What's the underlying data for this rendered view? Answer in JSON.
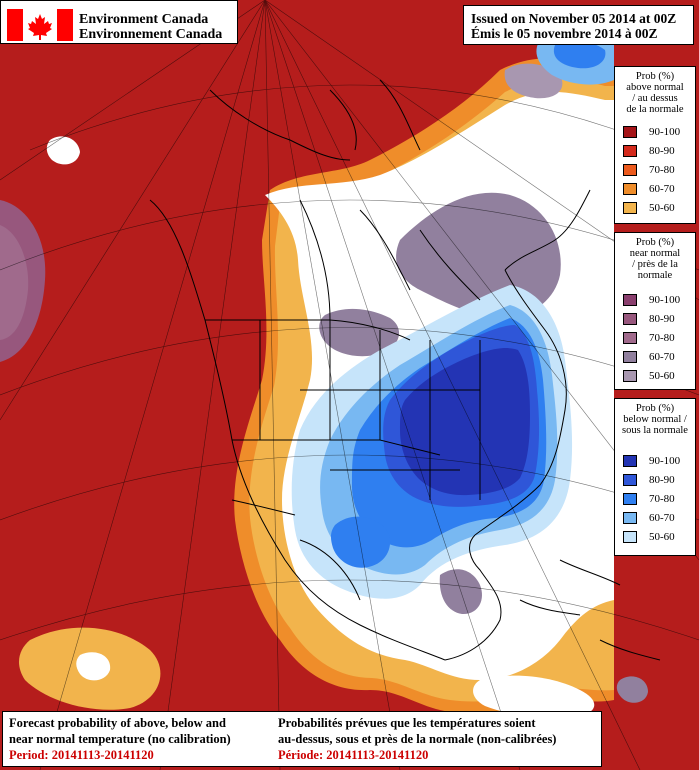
{
  "header": {
    "agency_en": "Environment Canada",
    "agency_fr": "Environnement Canada",
    "flag_colors": {
      "red": "#ff0000",
      "white": "#ffffff"
    }
  },
  "issued": {
    "en": "Issued on November 05 2014 at 00Z",
    "fr": "Émis le 05 novembre 2014 à 00Z"
  },
  "legends": {
    "above": {
      "title": [
        "Prob (%)",
        "above normal",
        "/ au dessus",
        "de la normale"
      ],
      "items": [
        {
          "range": "90-100",
          "color": "#a51418"
        },
        {
          "range": "80-90",
          "color": "#d42a1c"
        },
        {
          "range": "70-80",
          "color": "#ec5a1c"
        },
        {
          "range": "60-70",
          "color": "#ef8d2a"
        },
        {
          "range": "50-60",
          "color": "#f2b44c"
        }
      ]
    },
    "near": {
      "title": [
        "Prob (%)",
        "near normal",
        "/ près de la",
        "normale"
      ],
      "items": [
        {
          "range": "90-100",
          "color": "#8a3f6e"
        },
        {
          "range": "80-90",
          "color": "#97577d"
        },
        {
          "range": "70-80",
          "color": "#a06a8c"
        },
        {
          "range": "60-70",
          "color": "#91809e"
        },
        {
          "range": "50-60",
          "color": "#a897b0"
        }
      ]
    },
    "below": {
      "title": [
        "Prob (%)",
        "below normal /",
        "sous la normale"
      ],
      "items": [
        {
          "range": "90-100",
          "color": "#2334b4"
        },
        {
          "range": "80-90",
          "color": "#2f56d8"
        },
        {
          "range": "70-80",
          "color": "#2f7ff0"
        },
        {
          "range": "60-70",
          "color": "#78b8f2"
        },
        {
          "range": "50-60",
          "color": "#c6e4fa"
        }
      ]
    }
  },
  "footer": {
    "en_line1": "Forecast probability of above, below and",
    "en_line2": "near normal temperature (no calibration)",
    "en_period": "Period: 20141113-20141120",
    "fr_line1": "Probabilités prévues que les températures soient",
    "fr_line2": "au-dessus, sous et près de la normale (non-calibrées)",
    "fr_period": "Période: 20141113-20141120"
  },
  "map_colors": {
    "background": "#b51d1c",
    "white": "#ffffff",
    "boundary": "#000000"
  }
}
